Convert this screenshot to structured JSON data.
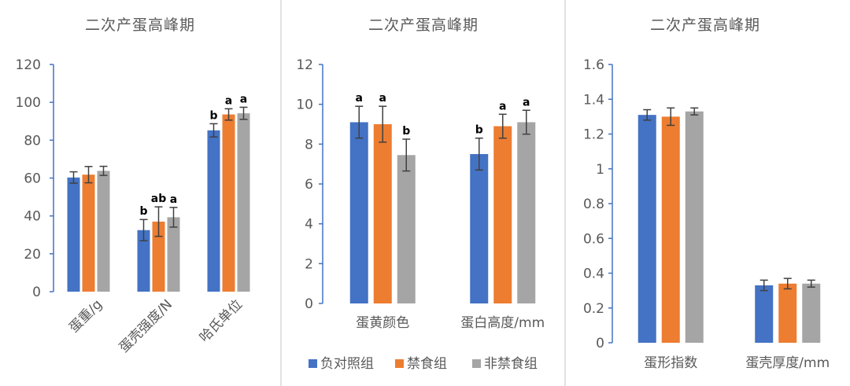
{
  "colors": {
    "negative_control": "#4472C4",
    "fasting": "#ED7D31",
    "non_fasting": "#A5A5A5"
  },
  "legend": {
    "items": [
      "负对照组",
      "禁食组",
      "非禁食组"
    ]
  },
  "chart_data": [
    {
      "type": "bar",
      "title": "二次产蛋高峰期",
      "ylim": [
        0,
        120
      ],
      "yticks": [
        "0",
        "20",
        "40",
        "60",
        "80",
        "100",
        "120"
      ],
      "categories": [
        "蛋重/g",
        "蛋壳强度/N",
        "哈氏单位"
      ],
      "category_label_rotation": "rotated -45°",
      "series": [
        {
          "name": "负对照组",
          "values": [
            60.3,
            32.5,
            85.2
          ],
          "errors": [
            3.0,
            5.6,
            3.5
          ],
          "labels": [
            "",
            "b",
            "b"
          ]
        },
        {
          "name": "禁食组",
          "values": [
            61.8,
            37.0,
            93.6
          ],
          "errors": [
            4.3,
            7.8,
            3.0
          ],
          "labels": [
            "",
            "ab",
            "a"
          ]
        },
        {
          "name": "非禁食组",
          "values": [
            63.8,
            39.3,
            94.2
          ],
          "errors": [
            2.4,
            5.2,
            3.2
          ],
          "labels": [
            "",
            "a",
            "a"
          ]
        }
      ]
    },
    {
      "type": "bar",
      "title": "二次产蛋高峰期",
      "ylim": [
        0,
        12
      ],
      "yticks": [
        "0",
        "2",
        "4",
        "6",
        "8",
        "10",
        "12"
      ],
      "categories": [
        "蛋黄颜色",
        "蛋白高度/mm"
      ],
      "legend": "bottom",
      "series": [
        {
          "name": "负对照组",
          "values": [
            9.1,
            7.5
          ],
          "errors": [
            0.8,
            0.8
          ],
          "labels": [
            "a",
            "b"
          ]
        },
        {
          "name": "禁食组",
          "values": [
            9.0,
            8.9
          ],
          "errors": [
            0.9,
            0.6
          ],
          "labels": [
            "a",
            "a"
          ]
        },
        {
          "name": "非禁食组",
          "values": [
            7.45,
            9.1
          ],
          "errors": [
            0.8,
            0.6
          ],
          "labels": [
            "b",
            "a"
          ]
        }
      ]
    },
    {
      "type": "bar",
      "title": "二次产蛋高峰期",
      "ylim": [
        0,
        1.6
      ],
      "yticks": [
        "0",
        "0.2",
        "0.4",
        "0.6",
        "0.8",
        "1",
        "1.2",
        "1.4",
        "1.6"
      ],
      "categories": [
        "蛋形指数",
        "蛋壳厚度/mm"
      ],
      "series": [
        {
          "name": "负对照组",
          "values": [
            1.31,
            0.33
          ],
          "errors": [
            0.03,
            0.03
          ],
          "labels": [
            "",
            ""
          ]
        },
        {
          "name": "禁食组",
          "values": [
            1.3,
            0.34
          ],
          "errors": [
            0.05,
            0.03
          ],
          "labels": [
            "",
            ""
          ]
        },
        {
          "name": "非禁食组",
          "values": [
            1.33,
            0.34
          ],
          "errors": [
            0.02,
            0.02
          ],
          "labels": [
            "",
            ""
          ]
        }
      ]
    }
  ]
}
